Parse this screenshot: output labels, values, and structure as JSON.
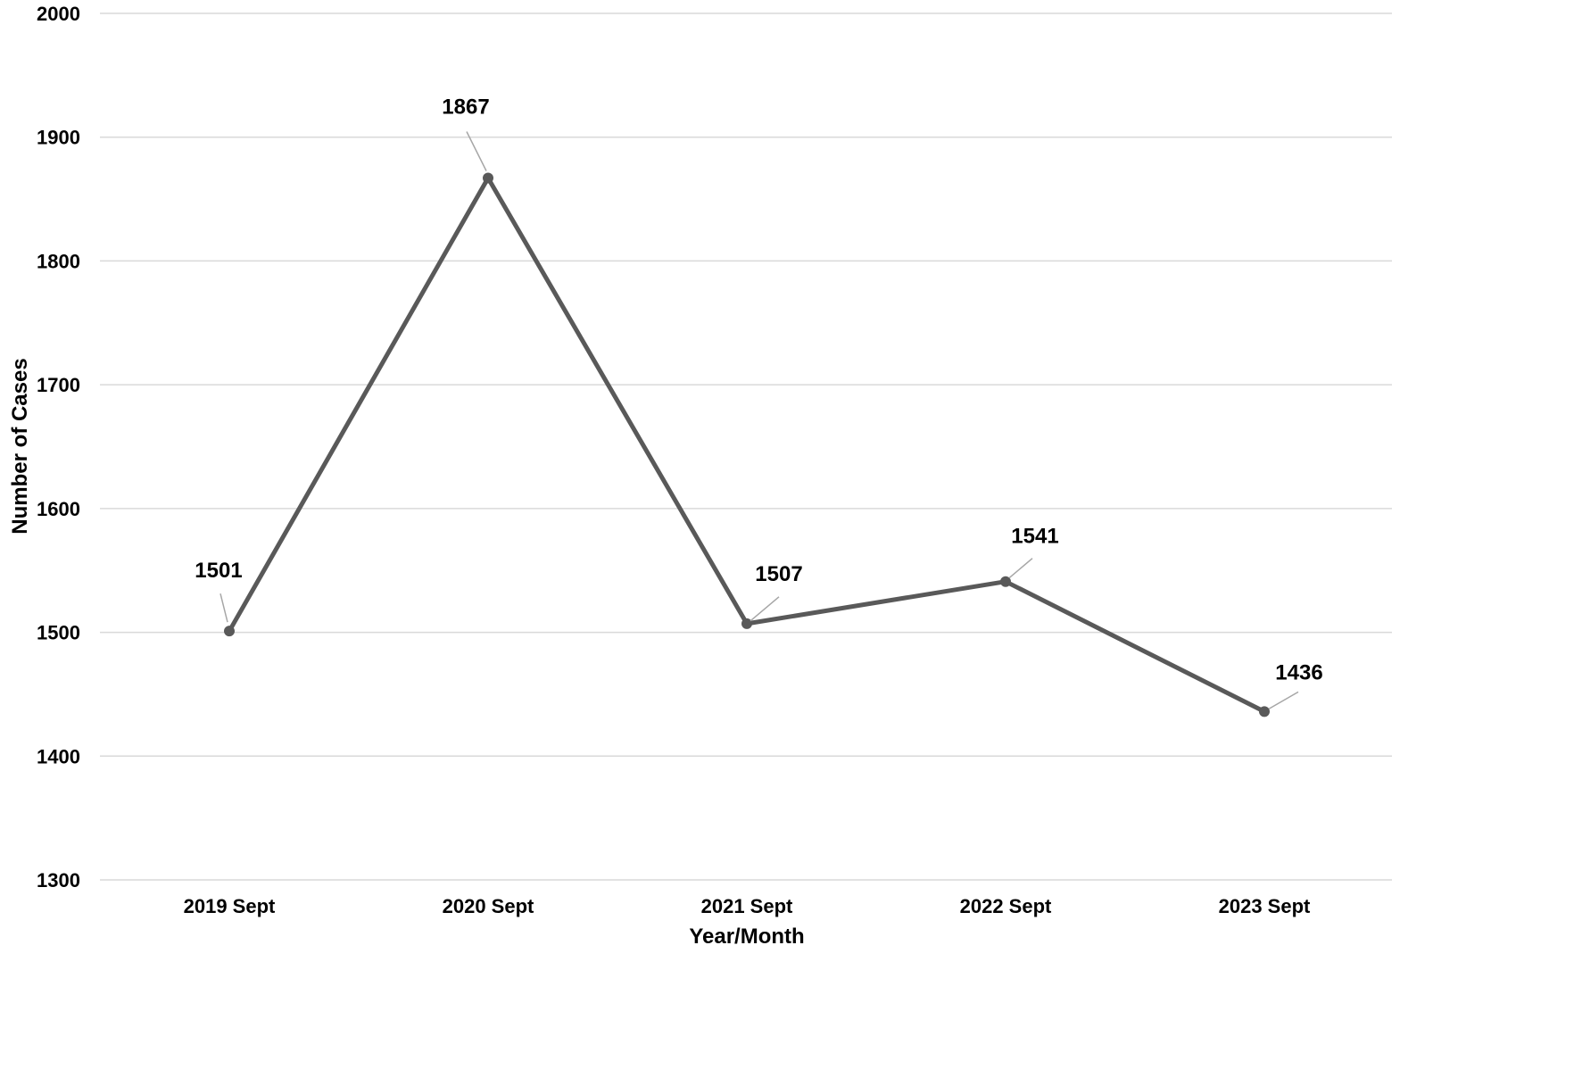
{
  "chart_data": {
    "type": "line",
    "categories": [
      "2019 Sept",
      "2020 Sept",
      "2021 Sept",
      "2022 Sept",
      "2023 Sept"
    ],
    "series": [
      {
        "values": [
          1501,
          1867,
          1507,
          1541,
          1436
        ]
      }
    ],
    "xlabel": "Year/Month",
    "ylabel": "Number of Cases",
    "ylim": [
      1300,
      2000
    ],
    "yticks": [
      1300,
      1400,
      1500,
      1600,
      1700,
      1800,
      1900,
      2000
    ],
    "grid": true,
    "legend": "none",
    "colors": {
      "line": "#595959",
      "grid": "#d9d9d9",
      "leader": "#a6a6a6",
      "text": "#000000"
    }
  }
}
